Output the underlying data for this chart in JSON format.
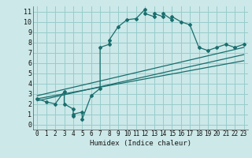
{
  "xlabel": "Humidex (Indice chaleur)",
  "xlim": [
    -0.5,
    23.5
  ],
  "ylim": [
    -0.5,
    11.5
  ],
  "xticks": [
    0,
    1,
    2,
    3,
    4,
    5,
    6,
    7,
    8,
    9,
    10,
    11,
    12,
    13,
    14,
    15,
    16,
    17,
    18,
    19,
    20,
    21,
    22,
    23
  ],
  "yticks": [
    0,
    1,
    2,
    3,
    4,
    5,
    6,
    7,
    8,
    9,
    10,
    11
  ],
  "bg_color": "#cce8e8",
  "grid_color": "#99cccc",
  "line_color": "#1a6e6e",
  "curve_x": [
    0,
    1,
    2,
    3,
    3,
    4,
    4,
    4,
    5,
    5,
    6,
    7,
    7,
    8,
    8,
    9,
    10,
    11,
    12,
    12,
    13,
    13,
    14,
    14,
    15,
    15,
    16,
    17,
    18,
    19,
    20,
    21,
    22,
    23
  ],
  "curve_y": [
    2.5,
    2.2,
    2.0,
    3.2,
    2.0,
    1.5,
    0.8,
    1.0,
    1.2,
    0.5,
    2.8,
    3.5,
    7.5,
    7.8,
    8.2,
    9.5,
    10.2,
    10.3,
    11.2,
    10.8,
    10.5,
    10.8,
    10.5,
    10.8,
    10.2,
    10.5,
    10.0,
    9.7,
    7.5,
    7.2,
    7.5,
    7.8,
    7.5,
    7.8
  ],
  "reg_line1": [
    [
      0,
      23
    ],
    [
      2.3,
      6.8
    ]
  ],
  "reg_line2": [
    [
      0,
      23
    ],
    [
      2.5,
      6.2
    ]
  ],
  "reg_line3": [
    [
      0,
      23
    ],
    [
      2.8,
      7.5
    ]
  ]
}
